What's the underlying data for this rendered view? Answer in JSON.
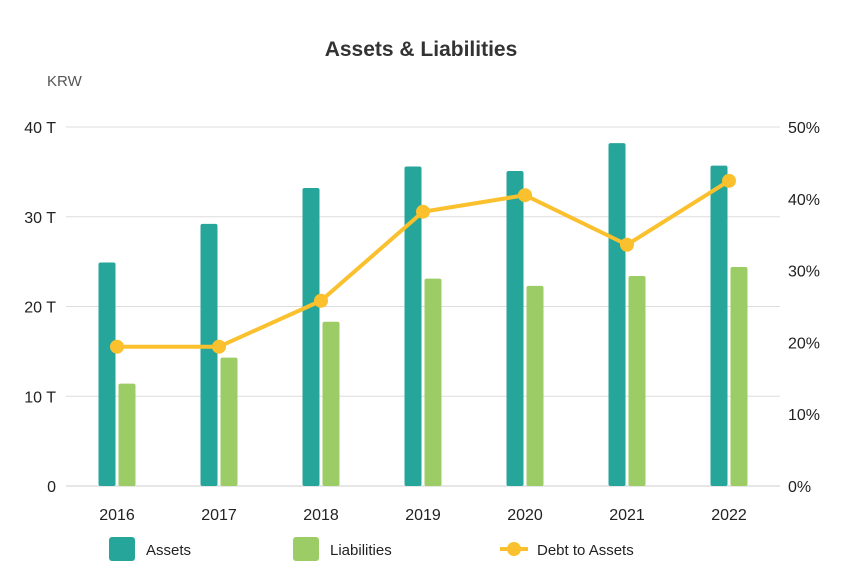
{
  "chart_data": {
    "type": "bar",
    "title": "Assets & Liabilities",
    "y_unit_label": "KRW",
    "categories": [
      "2016",
      "2017",
      "2018",
      "2019",
      "2020",
      "2021",
      "2022"
    ],
    "ylim": [
      0,
      40
    ],
    "y_ticks": [
      0,
      10,
      20,
      30,
      40
    ],
    "y_tick_labels": [
      "0",
      "10 T",
      "20 T",
      "30 T",
      "40 T"
    ],
    "y2lim": [
      0,
      50
    ],
    "y2_ticks": [
      0,
      10,
      20,
      30,
      40,
      50
    ],
    "y2_tick_labels": [
      "0%",
      "10%",
      "20%",
      "30%",
      "40%",
      "50%"
    ],
    "grid": true,
    "legend_position": "bottom",
    "series": [
      {
        "name": "Assets",
        "type": "bar",
        "axis": "left",
        "color": "#26a69a",
        "values": [
          24.9,
          29.2,
          33.2,
          35.6,
          35.1,
          38.2,
          35.7
        ]
      },
      {
        "name": "Liabilities",
        "type": "bar",
        "axis": "left",
        "color": "#9ccc65",
        "values": [
          11.4,
          14.3,
          18.3,
          23.1,
          22.3,
          23.4,
          24.4
        ]
      },
      {
        "name": "Debt to Assets",
        "type": "line",
        "axis": "right",
        "color": "#fbc02d",
        "values": [
          19.4,
          19.4,
          25.8,
          38.2,
          40.5,
          33.6,
          42.5
        ]
      }
    ]
  }
}
